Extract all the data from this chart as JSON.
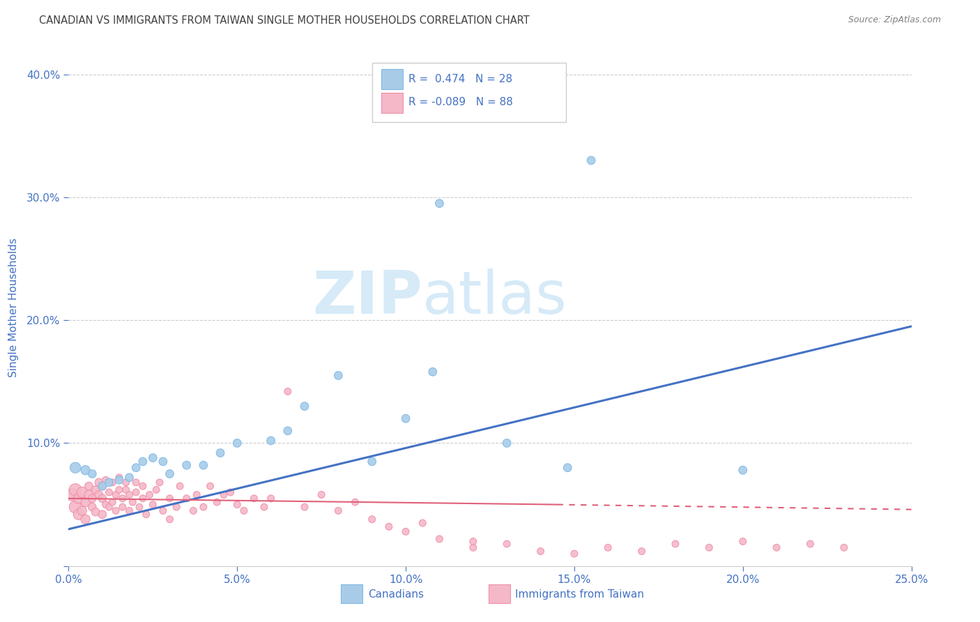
{
  "title": "CANADIAN VS IMMIGRANTS FROM TAIWAN SINGLE MOTHER HOUSEHOLDS CORRELATION CHART",
  "source": "Source: ZipAtlas.com",
  "ylabel": "Single Mother Households",
  "xlim": [
    0.0,
    0.25
  ],
  "ylim": [
    0.0,
    0.42
  ],
  "xticks": [
    0.0,
    0.05,
    0.1,
    0.15,
    0.2,
    0.25
  ],
  "yticks": [
    0.0,
    0.1,
    0.2,
    0.3,
    0.4
  ],
  "xticklabels": [
    "0.0%",
    "5.0%",
    "10.0%",
    "15.0%",
    "20.0%",
    "25.0%"
  ],
  "yticklabels": [
    "",
    "10.0%",
    "20.0%",
    "30.0%",
    "40.0%"
  ],
  "legend_labels": [
    "Canadians",
    "Immigrants from Taiwan"
  ],
  "blue_R": 0.474,
  "blue_N": 28,
  "pink_R": -0.089,
  "pink_N": 88,
  "blue_color": "#A8CCE8",
  "blue_edge_color": "#7EB8E8",
  "blue_line_color": "#4472C4",
  "pink_color": "#F4B8C8",
  "pink_edge_color": "#F090AA",
  "pink_line_color": "#E0607A",
  "title_color": "#404040",
  "axis_tick_color": "#4472C4",
  "watermark_color": "#D6EAF8",
  "background_color": "#FFFFFF",
  "grid_color": "#CCCCCC",
  "blue_scatter_x": [
    0.002,
    0.005,
    0.007,
    0.01,
    0.012,
    0.015,
    0.018,
    0.02,
    0.022,
    0.025,
    0.028,
    0.03,
    0.035,
    0.04,
    0.045,
    0.05,
    0.06,
    0.065,
    0.07,
    0.08,
    0.09,
    0.1,
    0.11,
    0.13,
    0.148,
    0.2,
    0.108,
    0.155
  ],
  "blue_scatter_y": [
    0.08,
    0.078,
    0.075,
    0.065,
    0.068,
    0.07,
    0.072,
    0.08,
    0.085,
    0.088,
    0.085,
    0.075,
    0.082,
    0.082,
    0.092,
    0.1,
    0.102,
    0.11,
    0.13,
    0.155,
    0.085,
    0.12,
    0.295,
    0.1,
    0.08,
    0.078,
    0.158,
    0.33
  ],
  "blue_scatter_size": 60,
  "pink_scatter_x": [
    0.001,
    0.002,
    0.002,
    0.003,
    0.003,
    0.004,
    0.004,
    0.005,
    0.005,
    0.006,
    0.006,
    0.007,
    0.007,
    0.008,
    0.008,
    0.009,
    0.009,
    0.01,
    0.01,
    0.01,
    0.011,
    0.011,
    0.012,
    0.012,
    0.013,
    0.013,
    0.014,
    0.014,
    0.015,
    0.015,
    0.016,
    0.016,
    0.017,
    0.017,
    0.018,
    0.018,
    0.019,
    0.02,
    0.02,
    0.021,
    0.022,
    0.022,
    0.023,
    0.024,
    0.025,
    0.026,
    0.027,
    0.028,
    0.03,
    0.03,
    0.032,
    0.033,
    0.035,
    0.037,
    0.038,
    0.04,
    0.042,
    0.044,
    0.046,
    0.048,
    0.05,
    0.052,
    0.055,
    0.058,
    0.06,
    0.065,
    0.07,
    0.075,
    0.08,
    0.085,
    0.09,
    0.095,
    0.1,
    0.105,
    0.11,
    0.12,
    0.13,
    0.14,
    0.15,
    0.16,
    0.17,
    0.18,
    0.19,
    0.2,
    0.21,
    0.22,
    0.23,
    0.12
  ],
  "pink_scatter_y": [
    0.058,
    0.062,
    0.048,
    0.055,
    0.042,
    0.06,
    0.045,
    0.052,
    0.038,
    0.058,
    0.065,
    0.048,
    0.055,
    0.062,
    0.044,
    0.058,
    0.068,
    0.042,
    0.055,
    0.065,
    0.05,
    0.07,
    0.048,
    0.06,
    0.052,
    0.068,
    0.058,
    0.045,
    0.062,
    0.072,
    0.048,
    0.055,
    0.062,
    0.068,
    0.045,
    0.058,
    0.052,
    0.06,
    0.068,
    0.048,
    0.055,
    0.065,
    0.042,
    0.058,
    0.05,
    0.062,
    0.068,
    0.045,
    0.055,
    0.038,
    0.048,
    0.065,
    0.055,
    0.045,
    0.058,
    0.048,
    0.065,
    0.052,
    0.058,
    0.06,
    0.05,
    0.045,
    0.055,
    0.048,
    0.055,
    0.142,
    0.048,
    0.058,
    0.045,
    0.052,
    0.038,
    0.032,
    0.028,
    0.035,
    0.022,
    0.015,
    0.018,
    0.012,
    0.01,
    0.015,
    0.012,
    0.018,
    0.015,
    0.02,
    0.015,
    0.018,
    0.015,
    0.02
  ],
  "pink_scatter_sizes_big": [
    0,
    1,
    2,
    3,
    4,
    5,
    6,
    7,
    8,
    9
  ],
  "pink_big_size": 120,
  "pink_small_size": 55
}
